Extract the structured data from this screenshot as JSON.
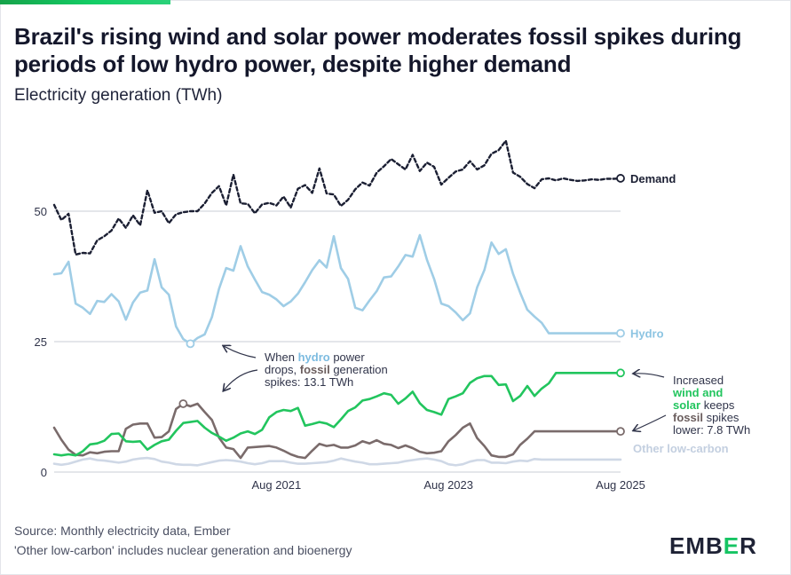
{
  "header": {
    "title": "Brazil's rising wind and solar power moderates fossil spikes during periods of low hydro power, despite higher demand",
    "subtitle": "Electricity generation (TWh)"
  },
  "footer": {
    "source": "Source: Monthly electricity data, Ember",
    "note": "'Other low-carbon' includes nuclear generation and bioenergy",
    "logo_left": "EMB",
    "logo_accent": "E",
    "logo_right": "R"
  },
  "colors": {
    "demand": "#1b1f33",
    "hydro": "#9fcde6",
    "wind_solar": "#22c55e",
    "fossil": "#7a6b6b",
    "other": "#cfd8e6",
    "grid": "#c9ccd6",
    "annotation": "#30344a"
  },
  "chart_data": {
    "type": "line",
    "ylim": [
      0,
      70
    ],
    "x_start": "2019-01",
    "x_end": "2025-08",
    "x_ticks": [
      {
        "label": "Aug 2021",
        "index": 31
      },
      {
        "label": "Aug 2023",
        "index": 55
      },
      {
        "label": "Aug 2025",
        "index": 79
      }
    ],
    "y_ticks": [
      {
        "label": "0",
        "value": 0
      },
      {
        "label": "25",
        "value": 25
      },
      {
        "label": "50",
        "value": 50
      }
    ],
    "series": [
      {
        "name": "Demand",
        "style": "dotted",
        "values": [
          51.2,
          48.3,
          49.5,
          41.7,
          42.0,
          41.9,
          44.4,
          45.2,
          46.3,
          48.6,
          46.8,
          49.2,
          47.3,
          54.0,
          49.7,
          50.0,
          47.7,
          49.4,
          49.8,
          50.0,
          50.0,
          51.5,
          53.5,
          54.8,
          51.1,
          57.0,
          51.5,
          51.4,
          49.6,
          51.3,
          51.6,
          51.1,
          52.8,
          50.7,
          54.3,
          55.0,
          53.5,
          58.2,
          53.4,
          53.2,
          51.0,
          52.2,
          54.2,
          55.5,
          54.9,
          57.4,
          58.6,
          60.0,
          59.0,
          58.0,
          60.8,
          57.7,
          59.3,
          58.5,
          55.1,
          56.4,
          57.6,
          58.0,
          59.6,
          58.0,
          58.8,
          61.0,
          61.7,
          63.5,
          57.4,
          56.6,
          55.2,
          54.4,
          56.1,
          56.3,
          55.9,
          56.3,
          56.0,
          55.8,
          55.9,
          56.1,
          56.0,
          56.2,
          56.2,
          56.3
        ]
      },
      {
        "name": "Hydro",
        "style": "solid",
        "values": [
          37.9,
          38.1,
          40.3,
          32.3,
          31.5,
          30.3,
          32.8,
          32.6,
          34.1,
          32.7,
          29.2,
          32.5,
          34.4,
          34.8,
          40.8,
          35.4,
          34.0,
          27.9,
          25.5,
          24.6,
          25.7,
          26.4,
          29.7,
          35.1,
          39.1,
          38.6,
          43.3,
          39.4,
          36.9,
          34.5,
          34.0,
          33.1,
          31.8,
          32.7,
          34.2,
          36.4,
          38.7,
          40.6,
          39.2,
          45.2,
          39.1,
          37.0,
          31.5,
          31.0,
          32.9,
          34.7,
          37.3,
          37.5,
          39.4,
          41.6,
          41.3,
          45.4,
          40.7,
          37.0,
          32.3,
          31.8,
          30.6,
          29.1,
          30.4,
          35.4,
          38.7,
          44.0,
          41.8,
          42.7,
          38.0,
          34.4,
          31.1,
          29.8,
          28.6,
          26.6,
          26.6,
          26.6,
          26.6,
          26.6,
          26.6,
          26.6,
          26.6,
          26.6,
          26.6,
          26.6
        ]
      },
      {
        "name": "Wind and solar",
        "style": "solid",
        "values": [
          3.4,
          3.2,
          3.4,
          3.2,
          4.0,
          5.3,
          5.5,
          6.0,
          7.3,
          7.4,
          5.9,
          5.8,
          5.9,
          4.3,
          5.2,
          5.9,
          6.2,
          7.9,
          9.4,
          9.6,
          9.8,
          8.5,
          7.5,
          6.8,
          6.0,
          6.6,
          7.4,
          7.8,
          7.3,
          8.1,
          10.5,
          11.5,
          11.9,
          11.7,
          12.3,
          8.9,
          9.2,
          9.6,
          9.3,
          8.6,
          10.1,
          11.7,
          12.4,
          13.7,
          14.0,
          14.5,
          15.1,
          14.8,
          13.1,
          14.1,
          15.4,
          13.2,
          11.9,
          11.5,
          11.0,
          14.0,
          14.5,
          15.1,
          17.1,
          18.0,
          18.4,
          18.4,
          16.7,
          16.8,
          13.6,
          14.6,
          16.5,
          14.6,
          16.0,
          17.0,
          19.0,
          19.0,
          19.0,
          19.0,
          19.0,
          19.0,
          19.0,
          19.0,
          19.0,
          19.0
        ]
      },
      {
        "name": "Fossil",
        "style": "solid",
        "values": [
          8.5,
          6.2,
          4.3,
          3.3,
          3.2,
          3.8,
          3.6,
          3.9,
          4.0,
          4.0,
          8.3,
          9.1,
          9.3,
          9.3,
          6.6,
          6.7,
          7.8,
          12.1,
          13.1,
          12.6,
          13.1,
          11.5,
          10.0,
          6.6,
          4.7,
          4.4,
          2.7,
          4.7,
          4.8,
          4.9,
          5.0,
          4.7,
          4.1,
          3.4,
          2.9,
          2.7,
          4.1,
          5.4,
          5.0,
          5.2,
          4.7,
          4.7,
          5.1,
          5.9,
          5.5,
          6.1,
          5.4,
          5.2,
          4.6,
          5.1,
          4.6,
          3.9,
          3.6,
          3.7,
          4.0,
          5.9,
          7.1,
          8.5,
          9.3,
          6.5,
          5.0,
          3.2,
          2.9,
          2.9,
          3.4,
          5.2,
          6.4,
          7.8,
          7.8,
          7.8,
          7.8,
          7.8,
          7.8,
          7.8,
          7.8,
          7.8,
          7.8,
          7.8,
          7.8,
          7.8
        ]
      },
      {
        "name": "Other low-carbon",
        "style": "solid",
        "values": [
          1.6,
          1.4,
          1.6,
          2.0,
          2.4,
          2.6,
          2.3,
          2.2,
          2.0,
          1.8,
          2.0,
          2.4,
          2.6,
          2.7,
          2.5,
          2.0,
          1.8,
          1.5,
          1.4,
          1.4,
          1.3,
          1.6,
          1.9,
          2.2,
          2.3,
          2.2,
          2.0,
          1.7,
          1.5,
          1.7,
          2.1,
          2.1,
          2.1,
          1.8,
          1.6,
          1.6,
          1.7,
          1.8,
          1.9,
          2.2,
          2.6,
          2.3,
          2.0,
          1.8,
          1.5,
          1.5,
          1.6,
          1.7,
          1.8,
          2.1,
          2.3,
          2.5,
          2.6,
          2.4,
          2.1,
          1.5,
          1.3,
          1.5,
          2.0,
          2.3,
          2.3,
          1.8,
          1.8,
          1.7,
          2.0,
          2.2,
          2.1,
          2.5,
          2.4,
          2.4,
          2.4,
          2.4,
          2.4,
          2.4,
          2.4,
          2.4,
          2.4,
          2.4,
          2.4,
          2.4
        ]
      }
    ],
    "end_labels": [
      "Demand",
      "Hydro",
      "",
      "",
      "Other low-carbon"
    ],
    "annotations": [
      {
        "lines": [
          [
            "When ",
            "",
            "hydro",
            "hydro",
            " power",
            ""
          ],
          [
            "drops, ",
            "",
            "fossil",
            "fossil",
            " generation",
            ""
          ],
          [
            "spikes: 13.1 TWh",
            ""
          ]
        ]
      },
      {
        "lines": [
          [
            "Increased",
            ""
          ],
          [
            "wind and",
            "wind_solar"
          ],
          [
            "solar",
            "wind_solar",
            " keeps",
            ""
          ],
          [
            "fossil",
            "fossil",
            " spikes",
            ""
          ],
          [
            "lower: 7.8 TWh",
            ""
          ]
        ]
      }
    ]
  }
}
